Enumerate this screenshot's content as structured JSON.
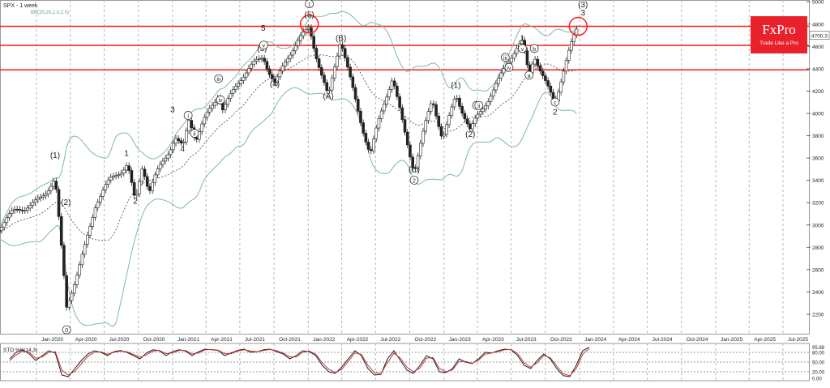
{
  "chart_data": [
    {
      "type": "candlestick",
      "title": "SPX - 1 week",
      "indicator_label": "BB(20,20,2.0,2.0)",
      "ylim": [
        2050,
        5000
      ],
      "y_ticks": [
        "2200",
        "2400",
        "2600",
        "2800",
        "3000",
        "3200",
        "3400",
        "3600",
        "3800",
        "4000",
        "4200",
        "4400",
        "4600",
        "4800",
        "5000"
      ],
      "x_ticks": [
        "Jan-2020",
        "Apr-2020",
        "Jul-2020",
        "Oct-2020",
        "Jan-2021",
        "Apr-2021",
        "Jul-2021",
        "Oct-2021",
        "Jan-2022",
        "Apr-2022",
        "Jul-2022",
        "Oct-2022",
        "Jan-2023",
        "Apr-2023",
        "Jul-2023",
        "Oct-2023",
        "Jan-2024",
        "Apr-2024",
        "Jul-2024",
        "Oct-2024",
        "Jan-2025",
        "Apr-2025",
        "Jul-2025"
      ],
      "price_label": "4700.3",
      "horizontal_levels": [
        4780,
        4610,
        4390
      ],
      "close_path": [
        {
          "date": "2019-09-01",
          "close": 2950
        },
        {
          "date": "2019-12-01",
          "close": 3150
        },
        {
          "date": "2020-02-20",
          "close": 3390
        },
        {
          "date": "2020-03-22",
          "close": 2240
        },
        {
          "date": "2020-06-08",
          "close": 3190
        },
        {
          "date": "2020-09-02",
          "close": 3580
        },
        {
          "date": "2020-09-23",
          "close": 3220
        },
        {
          "date": "2020-10-12",
          "close": 3530
        },
        {
          "date": "2020-10-30",
          "close": 3270
        },
        {
          "date": "2021-01-08",
          "close": 3820
        },
        {
          "date": "2021-01-29",
          "close": 3710
        },
        {
          "date": "2021-02-15",
          "close": 3950
        },
        {
          "date": "2021-03-04",
          "close": 3730
        },
        {
          "date": "2021-05-07",
          "close": 4230
        },
        {
          "date": "2021-05-12",
          "close": 4060
        },
        {
          "date": "2021-09-02",
          "close": 4540
        },
        {
          "date": "2021-10-04",
          "close": 4280
        },
        {
          "date": "2022-01-04",
          "close": 4800
        },
        {
          "date": "2022-02-24",
          "close": 4120
        },
        {
          "date": "2022-03-29",
          "close": 4640
        },
        {
          "date": "2022-06-17",
          "close": 3640
        },
        {
          "date": "2022-08-16",
          "close": 4320
        },
        {
          "date": "2022-10-13",
          "close": 3500
        },
        {
          "date": "2022-12-01",
          "close": 4100
        },
        {
          "date": "2022-12-28",
          "close": 3780
        },
        {
          "date": "2023-02-02",
          "close": 4200
        },
        {
          "date": "2023-03-13",
          "close": 3810
        },
        {
          "date": "2023-06-15",
          "close": 4450
        },
        {
          "date": "2023-07-31",
          "close": 4600
        },
        {
          "date": "2023-08-18",
          "close": 4330
        },
        {
          "date": "2023-09-01",
          "close": 4540
        },
        {
          "date": "2023-10-27",
          "close": 4100
        },
        {
          "date": "2023-12-28",
          "close": 4790
        }
      ],
      "wave_labels": [
        {
          "text": "0",
          "circled": true,
          "date": "2020-03-22",
          "y": 2040
        },
        {
          "text": "(1)",
          "circled": false,
          "date": "2020-02-20",
          "y": 3600
        },
        {
          "text": "(2)",
          "circled": false,
          "date": "2020-03-20",
          "y": 3180
        },
        {
          "text": "1",
          "circled": false,
          "date": "2020-08-30",
          "y": 3620
        },
        {
          "text": "2",
          "circled": false,
          "date": "2020-09-23",
          "y": 3190
        },
        {
          "text": "3",
          "circled": false,
          "date": "2021-01-01",
          "y": 4010
        },
        {
          "text": "4",
          "circled": false,
          "date": "2021-01-28",
          "y": 3660
        },
        {
          "text": "i",
          "circled": true,
          "date": "2021-02-12",
          "y": 3960
        },
        {
          "text": "ii",
          "circled": true,
          "date": "2021-03-01",
          "y": 3800
        },
        {
          "text": "iii",
          "circled": true,
          "date": "2021-05-05",
          "y": 4290
        },
        {
          "text": "iv",
          "circled": true,
          "date": "2021-05-10",
          "y": 4100
        },
        {
          "text": "(3)",
          "circled": false,
          "date": "2021-08-30",
          "y": 4560
        },
        {
          "text": "5",
          "circled": false,
          "date": "2021-09-02",
          "y": 4740
        },
        {
          "text": "v",
          "circled": true,
          "date": "2021-09-03",
          "y": 4590
        },
        {
          "text": "(4)",
          "circled": false,
          "date": "2021-10-03",
          "y": 4240
        },
        {
          "text": "1",
          "circled": true,
          "date": "2022-01-04",
          "y": 4960
        },
        {
          "text": "(5)",
          "circled": false,
          "date": "2022-01-04",
          "y": 4860
        },
        {
          "text": "(A)",
          "circled": false,
          "date": "2022-02-24",
          "y": 4130
        },
        {
          "text": "(B)",
          "circled": false,
          "date": "2022-03-30",
          "y": 4650
        },
        {
          "text": "(C)",
          "circled": false,
          "date": "2022-10-13",
          "y": 3470
        },
        {
          "text": "2",
          "circled": true,
          "date": "2022-10-13",
          "y": 3380
        },
        {
          "text": "(1)",
          "circled": false,
          "date": "2023-02-02",
          "y": 4230
        },
        {
          "text": "(2)",
          "circled": false,
          "date": "2023-03-13",
          "y": 3790
        },
        {
          "text": "i",
          "circled": true,
          "date": "2023-03-30",
          "y": 4050
        },
        {
          "text": "ii",
          "circled": true,
          "date": "2023-04-05",
          "y": 4050
        },
        {
          "text": "iii",
          "circled": true,
          "date": "2023-06-15",
          "y": 4480
        },
        {
          "text": "iv",
          "circled": true,
          "date": "2023-06-25",
          "y": 4390
        },
        {
          "text": "1",
          "circled": false,
          "date": "2023-07-31",
          "y": 4650
        },
        {
          "text": "v",
          "circled": true,
          "date": "2023-07-31",
          "y": 4560
        },
        {
          "text": "b",
          "circled": true,
          "date": "2023-09-01",
          "y": 4560
        },
        {
          "text": "a",
          "circled": true,
          "date": "2023-08-18",
          "y": 4320
        },
        {
          "text": "c",
          "circled": true,
          "date": "2023-10-27",
          "y": 4080
        },
        {
          "text": "2",
          "circled": false,
          "date": "2023-10-27",
          "y": 3990
        },
        {
          "text": "(3)",
          "circled": false,
          "date": "2024-01-10",
          "y": 4950
        },
        {
          "text": "3",
          "circled": false,
          "date": "2024-01-10",
          "y": 4880
        }
      ],
      "highlight_circles": [
        {
          "date": "2022-01-04",
          "y": 4800
        },
        {
          "date": "2023-12-28",
          "y": 4780
        }
      ]
    },
    {
      "type": "line",
      "title": "STO %K(14,3)",
      "ylim": [
        0,
        100
      ],
      "y_ticks": [
        "95.88",
        "80.00",
        "50.00",
        "20.00",
        "0.00"
      ],
      "reference_levels": [
        80,
        50,
        20
      ],
      "series": [
        {
          "color": "#222222",
          "values": [
            60,
            80,
            88,
            75,
            55,
            70,
            85,
            78,
            10,
            5,
            30,
            55,
            75,
            85,
            80,
            70,
            82,
            86,
            80,
            70,
            60,
            78,
            88,
            85,
            70,
            82,
            88,
            84,
            70,
            82,
            90,
            88,
            86,
            70,
            78,
            86,
            90,
            80,
            82,
            88,
            90,
            82,
            75,
            60,
            70,
            85,
            82,
            70,
            40,
            20,
            15,
            35,
            60,
            85,
            70,
            30,
            10,
            12,
            60,
            85,
            55,
            25,
            15,
            40,
            70,
            60,
            20,
            18,
            30,
            60,
            50,
            45,
            60,
            80,
            78,
            85,
            90,
            88,
            70,
            40,
            30,
            55,
            75,
            60,
            30,
            8,
            5,
            40,
            85,
            96
          ]
        },
        {
          "color": "#c03838",
          "values": [
            55,
            72,
            84,
            80,
            62,
            66,
            80,
            82,
            25,
            10,
            22,
            45,
            68,
            80,
            82,
            74,
            80,
            84,
            82,
            74,
            65,
            72,
            84,
            86,
            76,
            78,
            86,
            86,
            75,
            78,
            88,
            89,
            87,
            76,
            76,
            84,
            88,
            84,
            82,
            86,
            89,
            85,
            78,
            66,
            66,
            80,
            84,
            74,
            48,
            28,
            18,
            28,
            52,
            78,
            74,
            40,
            18,
            14,
            48,
            78,
            62,
            34,
            20,
            32,
            62,
            64,
            30,
            20,
            26,
            52,
            52,
            46,
            56,
            74,
            78,
            82,
            88,
            89,
            76,
            48,
            34,
            48,
            70,
            64,
            38,
            14,
            8,
            30,
            75,
            92
          ]
        }
      ]
    }
  ],
  "logo": {
    "brand": "FxPro",
    "tagline": "Trade Like a Pro"
  },
  "colors": {
    "level": "#ff1a1a",
    "up": "#3a9a3a",
    "down": "#222222",
    "band": "#7fb8a8",
    "stoch_k": "#222222",
    "stoch_d": "#c03838",
    "logo_bg": "#e8212b"
  }
}
